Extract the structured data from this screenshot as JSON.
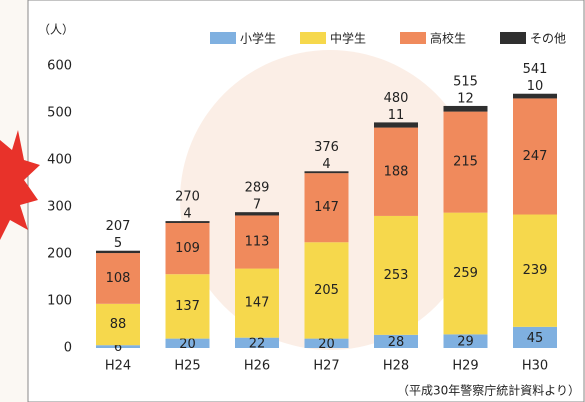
{
  "chart_data": {
    "type": "stacked-bar",
    "y_label": "（人）",
    "source": "（平成30年警察庁統計資料より）",
    "categories": [
      "H24",
      "H25",
      "H26",
      "H27",
      "H28",
      "H29",
      "H30"
    ],
    "series": [
      {
        "name": "小学生",
        "color": "#7fb0e0",
        "values": [
          6,
          20,
          22,
          20,
          28,
          29,
          45
        ]
      },
      {
        "name": "中学生",
        "color": "#f6d84c",
        "values": [
          88,
          137,
          147,
          205,
          253,
          259,
          239
        ]
      },
      {
        "name": "高校生",
        "color": "#f08a5c",
        "values": [
          108,
          109,
          113,
          147,
          188,
          215,
          247
        ]
      },
      {
        "name": "その他",
        "color": "#2f2f2f",
        "values": [
          5,
          4,
          7,
          4,
          11,
          12,
          10
        ]
      }
    ],
    "totals": [
      207,
      270,
      289,
      376,
      480,
      515,
      541
    ],
    "ylim": [
      0,
      600
    ],
    "yticks": [
      0,
      100,
      200,
      300,
      400,
      500,
      600
    ]
  }
}
